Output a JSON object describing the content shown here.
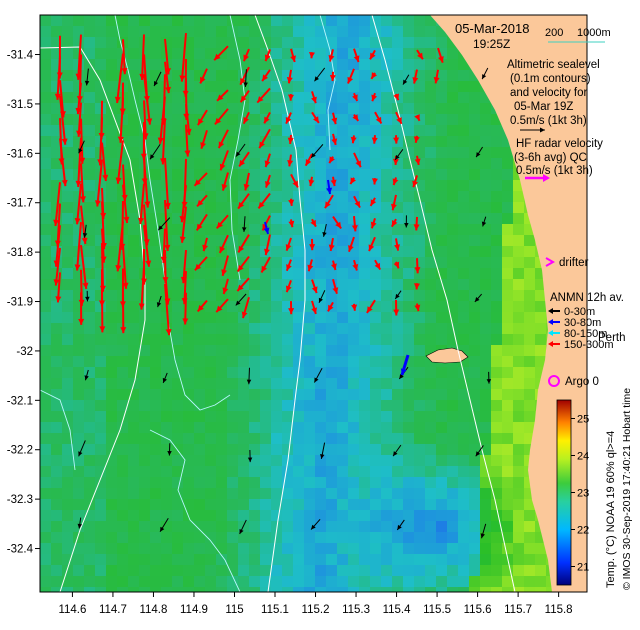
{
  "map": {
    "date_line": "05-Mar-2018",
    "time_line": "19:25Z",
    "scale_bar": {
      "label_200": "200",
      "label_1000": "1000m"
    },
    "altimetry_legend": {
      "lines": [
        "Altimetric sealevel",
        "(0.1m contours)",
        "and velocity for",
        "05-Mar 19Z",
        "0.5m/s (1kt 3h)"
      ]
    },
    "hf_legend": {
      "lines": [
        "HF radar velocity",
        "(3-6h avg) QC",
        "0.5m/s (1kt 3h)"
      ]
    },
    "drifter_label": "drifter",
    "anmn_legend": {
      "title": "ANMN 12h av.",
      "items": [
        "0-30m",
        "30-80m",
        "80-150m",
        "150-300m"
      ],
      "colors": [
        "#000000",
        "#0000ff",
        "#00e5ff",
        "#ff0000"
      ]
    },
    "place_label": "Perth",
    "argo_label": "Argo 0",
    "colorbar": {
      "label": "Temp. (°C) NOAA 19 60% ql>=4",
      "ticks": [
        "21",
        "22",
        "23",
        "24",
        "25"
      ],
      "min": 20.5,
      "max": 25.5
    },
    "credit": "© IMOS 30-Sep-2019 17:40:21 Hobart time",
    "hobart_fragment": "Hobart tim",
    "x_ticks": [
      "114.6",
      "114.7",
      "114.8",
      "114.9",
      "115",
      "115.1",
      "115.2",
      "115.3",
      "115.4",
      "115.5",
      "115.6",
      "115.7",
      "115.8"
    ],
    "y_ticks": [
      "-31.4",
      "-31.5",
      "-31.6",
      "-31.7",
      "-31.8",
      "-31.9",
      "-32",
      "-32.1",
      "-32.2",
      "-32.3",
      "-32.4"
    ],
    "lon_range": [
      114.52,
      115.87
    ],
    "lat_range": [
      -32.488,
      -31.32
    ],
    "colors": {
      "land": "#fbc89a",
      "sst_low": "#1d3fb5",
      "sst_mid": "#21c04a",
      "sst_high": "#e9f02a",
      "hf_arrow": "#ff0000",
      "alt_arrow": "#000000",
      "argo": "#ff00ff",
      "drifter": "#ff00ff",
      "contour": "#b7f7ff",
      "isobath": "#ffffff"
    }
  }
}
